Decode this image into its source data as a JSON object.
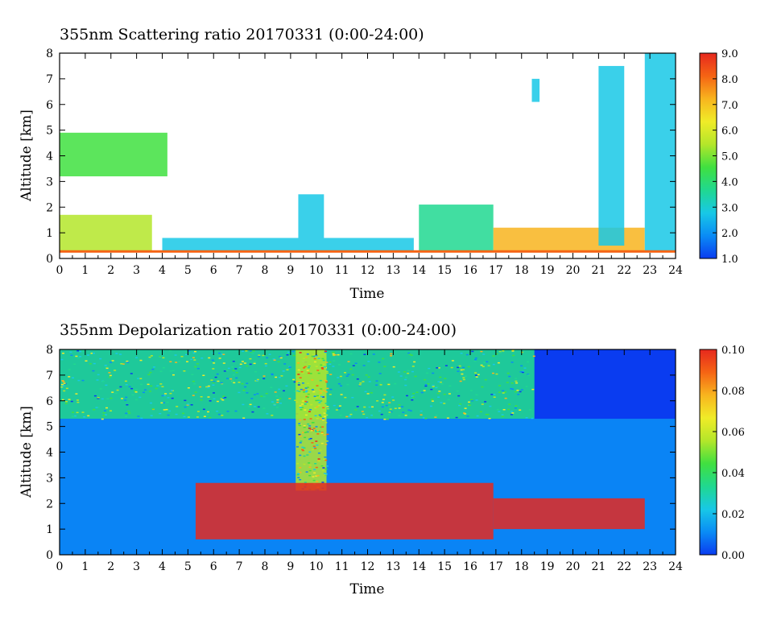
{
  "chart_data": [
    {
      "type": "heatmap",
      "title": "355nm Scattering ratio  20170331 (0:00-24:00)",
      "xlabel": "Time",
      "ylabel": "Altitude [km]",
      "xlim": [
        0,
        24
      ],
      "ylim": [
        0,
        8
      ],
      "x_ticks": [
        "0",
        "1",
        "2",
        "3",
        "4",
        "5",
        "6",
        "7",
        "8",
        "9",
        "10",
        "11",
        "12",
        "13",
        "14",
        "15",
        "16",
        "17",
        "18",
        "19",
        "20",
        "21",
        "22",
        "23",
        "24"
      ],
      "y_ticks": [
        "0",
        "1",
        "2",
        "3",
        "4",
        "5",
        "6",
        "7",
        "8"
      ],
      "colorbar": {
        "min": 1.0,
        "max": 9.0,
        "ticks": [
          "1.0",
          "2.0",
          "3.0",
          "4.0",
          "5.0",
          "6.0",
          "7.0",
          "8.0",
          "9.0"
        ],
        "colors": [
          "#0a3cf0",
          "#0a8cf5",
          "#18c8e6",
          "#20d890",
          "#40e040",
          "#b4e62a",
          "#f0ec28",
          "#f8b41e",
          "#f56414",
          "#e6281e"
        ]
      },
      "features": [
        {
          "x": [
            0,
            4.2
          ],
          "alt": [
            3.2,
            4.9
          ],
          "value": 4.5
        },
        {
          "x": [
            0,
            3.6
          ],
          "alt": [
            0.3,
            1.7
          ],
          "value": 5.5
        },
        {
          "x": [
            4.0,
            13.8
          ],
          "alt": [
            0.3,
            0.8
          ],
          "value": 3.0
        },
        {
          "x": [
            9.3,
            10.3
          ],
          "alt": [
            0.8,
            2.5
          ],
          "value": 2.8
        },
        {
          "x": [
            14.0,
            16.9
          ],
          "alt": [
            0.3,
            2.1
          ],
          "value": 4.0
        },
        {
          "x": [
            16.9,
            22.8
          ],
          "alt": [
            0.3,
            1.2
          ],
          "value": 7.0
        },
        {
          "x": [
            18.4,
            18.7
          ],
          "alt": [
            6.1,
            7.0
          ],
          "value": 3.0
        },
        {
          "x": [
            21.0,
            22.0
          ],
          "alt": [
            0.5,
            7.5
          ],
          "value": 3.0
        },
        {
          "x": [
            22.8,
            24.0
          ],
          "alt": [
            0.3,
            8.0
          ],
          "value": 2.8
        }
      ]
    },
    {
      "type": "heatmap",
      "title": "355nm Depolarization ratio  20170331 (0:00-24:00)",
      "xlabel": "Time",
      "ylabel": "Altitude [km]",
      "xlim": [
        0,
        24
      ],
      "ylim": [
        0,
        8
      ],
      "x_ticks": [
        "0",
        "1",
        "2",
        "3",
        "4",
        "5",
        "6",
        "7",
        "8",
        "9",
        "10",
        "11",
        "12",
        "13",
        "14",
        "15",
        "16",
        "17",
        "18",
        "19",
        "20",
        "21",
        "22",
        "23",
        "24"
      ],
      "y_ticks": [
        "0",
        "1",
        "2",
        "3",
        "4",
        "5",
        "6",
        "7",
        "8"
      ],
      "colorbar": {
        "min": 0.0,
        "max": 0.1,
        "ticks": [
          "0.00",
          "0.02",
          "0.04",
          "0.06",
          "0.08",
          "0.10"
        ],
        "colors": [
          "#0a3cf0",
          "#0a8cf5",
          "#18c8e6",
          "#20d890",
          "#40e040",
          "#b4e62a",
          "#f0ec28",
          "#f8b41e",
          "#f56414",
          "#e6281e"
        ]
      },
      "features": [
        {
          "x": [
            0,
            24
          ],
          "alt": [
            0,
            5.3
          ],
          "value": 0.01
        },
        {
          "x": [
            0,
            18.5
          ],
          "alt": [
            5.3,
            8.0
          ],
          "value": 0.03
        },
        {
          "x": [
            9.2,
            10.4
          ],
          "alt": [
            2.5,
            8.0
          ],
          "value": 0.06
        },
        {
          "x": [
            5.3,
            16.9
          ],
          "alt": [
            0.6,
            2.8
          ],
          "value": 0.1
        },
        {
          "x": [
            16.9,
            22.8
          ],
          "alt": [
            1.0,
            2.2
          ],
          "value": 0.1
        }
      ]
    }
  ]
}
